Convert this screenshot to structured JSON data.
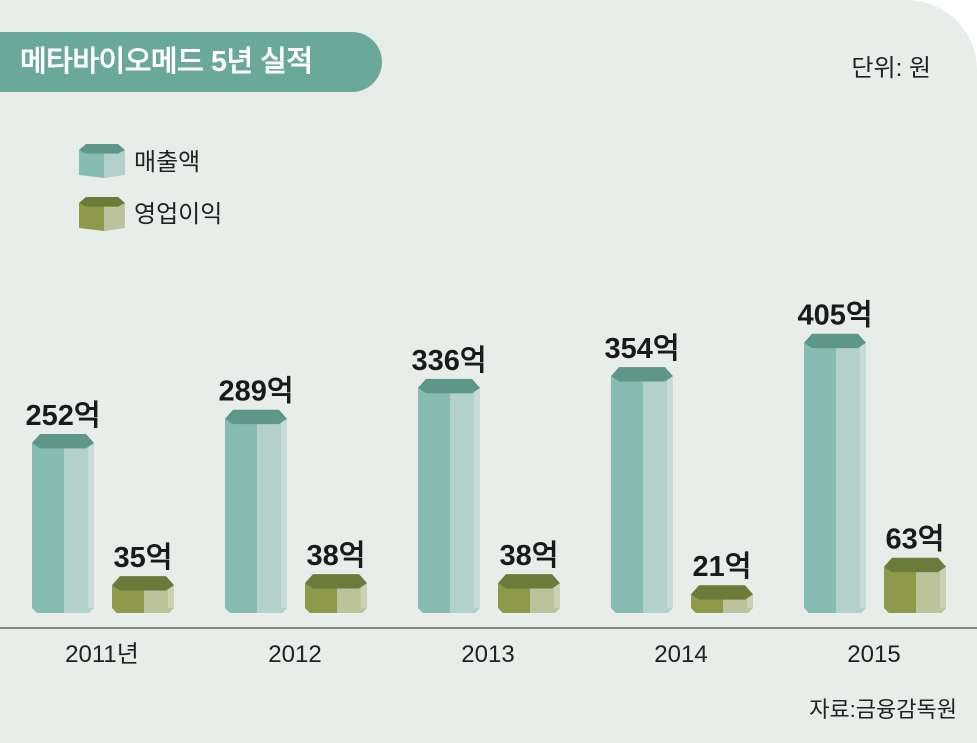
{
  "title": "메타바이오메드 5년 실적",
  "unit": "단위: 원",
  "source": "자료:금융감독원",
  "colors": {
    "background": "#e8ede9",
    "banner": "#6aa899",
    "sales_front": "#87bcb2",
    "sales_side": "#b4d0cb",
    "sales_top": "#5e9688",
    "profit_front": "#8e9a49",
    "profit_side": "#bcc29a",
    "profit_top": "#6c7a3a",
    "axis": "#666666"
  },
  "chart_data": {
    "type": "bar",
    "categories": [
      "2011년",
      "2012",
      "2013",
      "2014",
      "2015"
    ],
    "series": [
      {
        "name": "매출액",
        "values": [
          252,
          289,
          336,
          354,
          405
        ],
        "labels": [
          "252억",
          "289억",
          "336억",
          "354억",
          "405억"
        ]
      },
      {
        "name": "영업이익",
        "values": [
          35,
          38,
          38,
          21,
          63
        ],
        "labels": [
          "35억",
          "38억",
          "38억",
          "21억",
          "63억"
        ]
      }
    ],
    "legend_position": "top-left",
    "grid": false
  }
}
